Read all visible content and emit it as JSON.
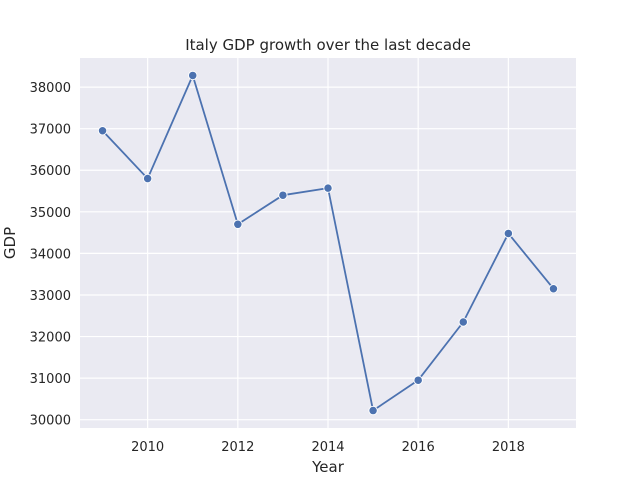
{
  "chart_data": {
    "type": "line",
    "title": "Italy GDP growth over the last decade",
    "xlabel": "Year",
    "ylabel": "GDP",
    "x": [
      2009,
      2010,
      2011,
      2012,
      2013,
      2014,
      2015,
      2016,
      2017,
      2018,
      2019
    ],
    "series": [
      {
        "values": [
          36950,
          35800,
          38280,
          34700,
          35400,
          35570,
          30220,
          30950,
          32350,
          34480,
          33150
        ]
      }
    ],
    "xlim": [
      2008.5,
      2019.5
    ],
    "ylim": [
      29800,
      38700
    ],
    "xticks": [
      2010,
      2012,
      2014,
      2016,
      2018
    ],
    "yticks": [
      30000,
      31000,
      32000,
      33000,
      34000,
      35000,
      36000,
      37000,
      38000
    ],
    "grid": true,
    "legend": "none",
    "colors": {
      "background": "#EAEAF2",
      "grid": "#FFFFFF",
      "line": "#4C72B0",
      "marker_edge": "#FFFFFF"
    }
  }
}
